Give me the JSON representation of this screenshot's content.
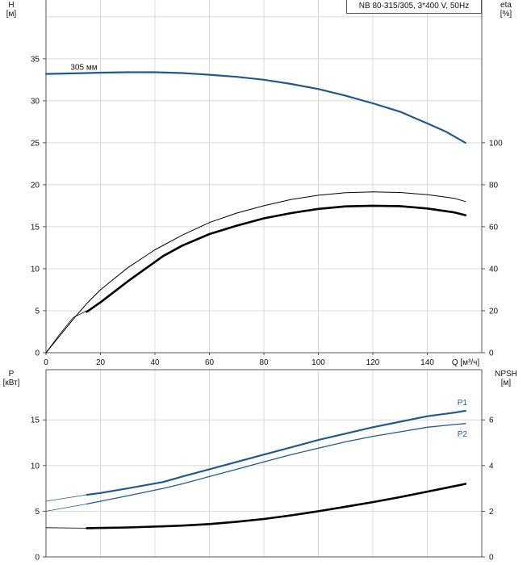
{
  "title": "NB 80-315/305, 3*400 V, 50Hz",
  "colors": {
    "blue": "#1f5a8f",
    "black": "#000000",
    "grid": "#d8d8d8",
    "axis": "#555555"
  },
  "chart_data": [
    {
      "type": "line",
      "panel": "upper",
      "xlabel": "Q [м³/ч]",
      "ylabel_left": [
        "H",
        "[м]"
      ],
      "ylabel_right": [
        "eta",
        "[%]"
      ],
      "xlim": [
        0,
        160
      ],
      "ylim_left": [
        0,
        42
      ],
      "ylim_right": [
        0,
        168
      ],
      "x_ticks": [
        "0",
        "20",
        "40",
        "60",
        "80",
        "100",
        "120",
        "140"
      ],
      "y_left_ticks": [
        "0",
        "5",
        "10",
        "15",
        "20",
        "25",
        "30",
        "35"
      ],
      "y_right_ticks": [
        "0",
        "20",
        "40",
        "60",
        "80",
        "100"
      ],
      "annotation": "305 мм",
      "grid": true,
      "series": [
        {
          "axis": "left",
          "color": "#1f5a8f",
          "width": 2.2,
          "x": [
            0,
            15,
            20,
            30,
            40,
            50,
            60,
            70,
            80,
            90,
            100,
            110,
            120,
            130,
            140,
            147,
            154
          ],
          "y": [
            33.2,
            33.3,
            33.35,
            33.4,
            33.4,
            33.3,
            33.1,
            32.85,
            32.5,
            32.0,
            31.4,
            30.6,
            29.7,
            28.7,
            27.3,
            26.3,
            25.0
          ]
        },
        {
          "axis": "right",
          "color": "#000000",
          "width": 1.0,
          "x": [
            0,
            5,
            10,
            15,
            20,
            30,
            40,
            50,
            60,
            70,
            80,
            90,
            100,
            110,
            120,
            130,
            140,
            150,
            154
          ],
          "y": [
            0,
            8,
            16,
            23.5,
            30,
            40.5,
            49,
            56,
            62,
            66.5,
            70,
            73,
            75,
            76.2,
            76.6,
            76.3,
            75.3,
            73.5,
            72
          ]
        },
        {
          "axis": "right",
          "color": "#000000",
          "width": 2.6,
          "x": [
            15,
            20,
            30,
            43,
            50,
            60,
            70,
            80,
            90,
            100,
            110,
            120,
            130,
            140,
            150,
            154
          ],
          "y": [
            19.5,
            24,
            34,
            46,
            51,
            56.5,
            60.5,
            64,
            66.5,
            68.5,
            69.7,
            70,
            69.8,
            68.7,
            66.8,
            65.5
          ]
        },
        {
          "axis": "left",
          "color": "#000000",
          "width": 0.7,
          "x": [
            0,
            5,
            10,
            15
          ],
          "y": [
            0,
            2.2,
            4.2,
            5.0
          ]
        }
      ]
    },
    {
      "type": "line",
      "panel": "lower",
      "ylabel_left": [
        "P",
        "[кВт]"
      ],
      "ylabel_right": [
        "NPSH",
        "[м]"
      ],
      "xlim": [
        0,
        160
      ],
      "ylim_left": [
        0,
        20.5
      ],
      "ylim_right": [
        0,
        8.2
      ],
      "y_left_ticks": [
        "0",
        "5",
        "10",
        "15"
      ],
      "y_right_ticks": [
        "0",
        "2",
        "4",
        "6"
      ],
      "grid": true,
      "series": [
        {
          "name": "P1",
          "axis": "left",
          "color": "#1f5a8f",
          "width": 2.2,
          "x": [
            15,
            20,
            30,
            43,
            50,
            60,
            70,
            80,
            90,
            100,
            110,
            120,
            130,
            140,
            150,
            154
          ],
          "y": [
            6.8,
            7.0,
            7.5,
            8.2,
            8.8,
            9.6,
            10.4,
            11.2,
            12.0,
            12.8,
            13.5,
            14.2,
            14.8,
            15.4,
            15.8,
            16.0
          ]
        },
        {
          "name": "P2",
          "axis": "left",
          "color": "#1f5a8f",
          "width": 1.3,
          "x": [
            15,
            20,
            30,
            43,
            50,
            60,
            70,
            80,
            90,
            100,
            110,
            120,
            130,
            140,
            150,
            154
          ],
          "y": [
            5.8,
            6.1,
            6.7,
            7.5,
            8.0,
            8.8,
            9.6,
            10.4,
            11.2,
            11.9,
            12.6,
            13.2,
            13.7,
            14.2,
            14.5,
            14.6
          ]
        },
        {
          "axis": "left",
          "color": "#1f5a8f",
          "width": 0.8,
          "x": [
            0,
            15
          ],
          "y": [
            6.1,
            6.8
          ]
        },
        {
          "axis": "left",
          "color": "#1f5a8f",
          "width": 0.8,
          "x": [
            0,
            15
          ],
          "y": [
            5.0,
            5.8
          ]
        },
        {
          "axis": "right",
          "color": "#000000",
          "width": 2.6,
          "x": [
            15,
            20,
            30,
            43,
            50,
            60,
            70,
            80,
            90,
            100,
            110,
            120,
            130,
            140,
            150,
            154
          ],
          "y": [
            1.26,
            1.27,
            1.29,
            1.34,
            1.37,
            1.44,
            1.54,
            1.66,
            1.82,
            2.0,
            2.2,
            2.4,
            2.62,
            2.86,
            3.1,
            3.2
          ]
        },
        {
          "axis": "right",
          "color": "#000000",
          "width": 0.8,
          "x": [
            0,
            15
          ],
          "y": [
            1.28,
            1.26
          ]
        }
      ]
    }
  ]
}
